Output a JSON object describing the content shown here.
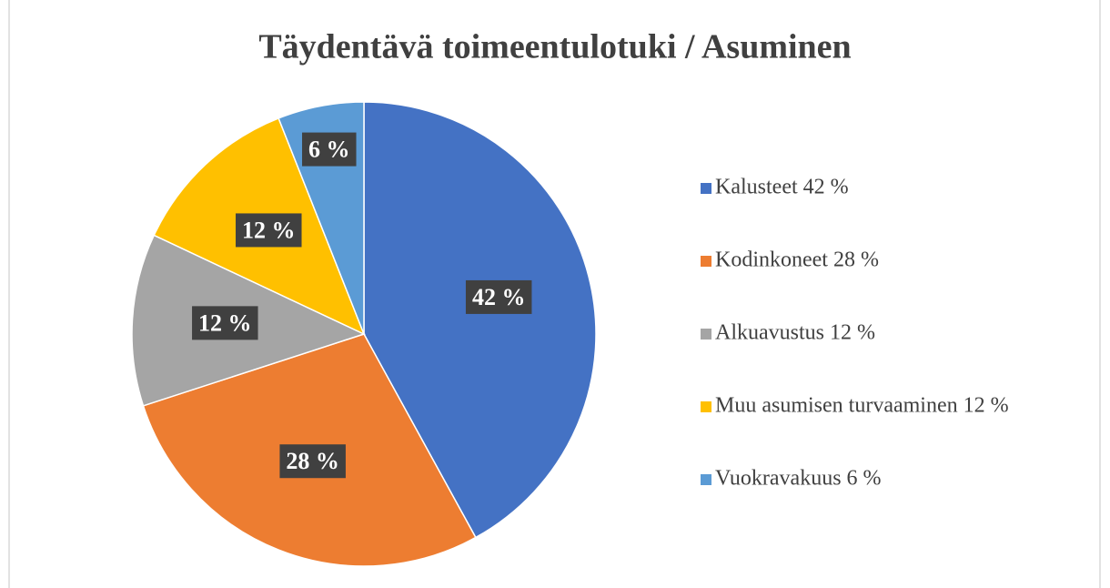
{
  "chart_data": {
    "type": "pie",
    "title": "Täydentävä toimeentulotuki / Asuminen",
    "categories": [
      "Kalusteet 42 %",
      "Kodinkoneet 28 %",
      "Alkuavustus 12 %",
      "Muu asumisen turvaaminen 12 %",
      "Vuokravakuus 6 %"
    ],
    "values": [
      42,
      28,
      12,
      12,
      6
    ],
    "value_labels": [
      "42 %",
      "28 %",
      "12 %",
      "12 %",
      "6 %"
    ],
    "colors": [
      "#4472c4",
      "#ed7d31",
      "#a5a5a5",
      "#ffc000",
      "#5b9bd5"
    ],
    "legend": "right"
  }
}
